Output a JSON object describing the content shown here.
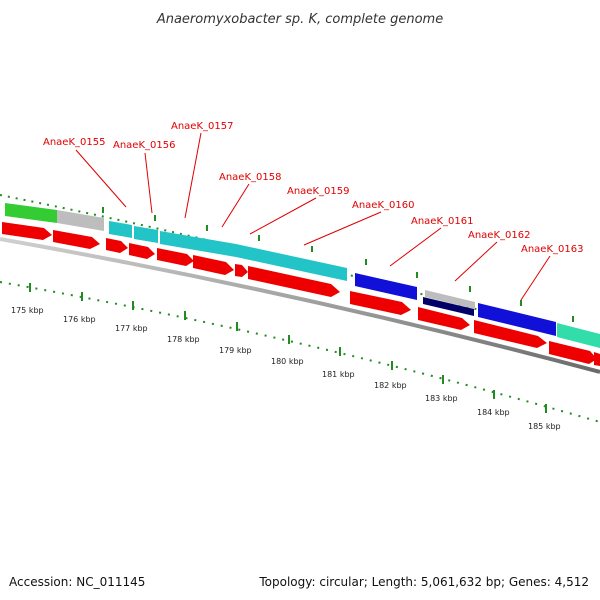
{
  "title": "Anaeromyxobacter sp. K, complete genome",
  "footer": {
    "accession": "Accession: NC_011145",
    "summary": "Topology: circular; Length: 5,061,632 bp; Genes: 4,512"
  },
  "colors": {
    "gene_label": "#e00000",
    "cds_arrow": "#ee0000",
    "backbone": "#8a8a8a",
    "tick": "#228b22",
    "cyan": "#22c4c8",
    "blue": "#1010d8",
    "navy": "#000066",
    "green": "#33cc33",
    "gray": "#bdbdbd",
    "teal": "#33ddaa"
  },
  "gene_labels": [
    "AnaeK_0155",
    "AnaeK_0156",
    "AnaeK_0157",
    "AnaeK_0158",
    "AnaeK_0159",
    "AnaeK_0160",
    "AnaeK_0161",
    "AnaeK_0162",
    "AnaeK_0163"
  ],
  "tick_labels": [
    "175 kbp",
    "176 kbp",
    "177 kbp",
    "178 kbp",
    "179 kbp",
    "180 kbp",
    "181 kbp",
    "182 kbp",
    "183 kbp",
    "184 kbp",
    "185 kbp"
  ],
  "feature_track": [
    {
      "category": "green"
    },
    {
      "category": "gray"
    },
    {
      "category": "cyan"
    },
    {
      "category": "cyan"
    },
    {
      "category": "cyan"
    },
    {
      "category": "cyan"
    },
    {
      "category": "blue"
    },
    {
      "category": "gray"
    },
    {
      "category": "navy"
    },
    {
      "category": "blue"
    },
    {
      "category": "teal"
    }
  ]
}
